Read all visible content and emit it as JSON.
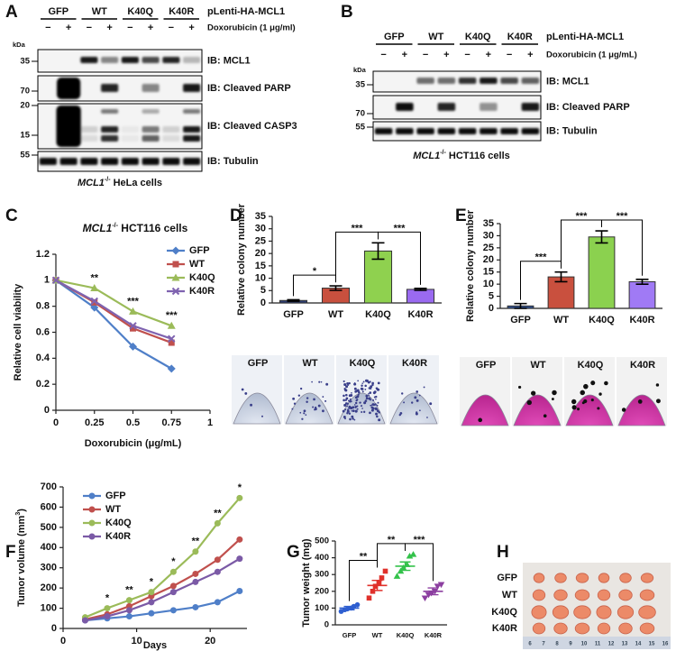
{
  "panel_labels": [
    "A",
    "B",
    "C",
    "D",
    "E",
    "F",
    "G",
    "H"
  ],
  "blot_a": {
    "groups": [
      "GFP",
      "WT",
      "K40Q",
      "K40R"
    ],
    "construct": "pLenti-HA-MCL1",
    "treatment": [
      "−",
      "+",
      "−",
      "+",
      "−",
      "+",
      "−",
      "+"
    ],
    "treatment_label": "Doxorubicin (1 μg/ml)",
    "kda": "kDa",
    "markers": [
      35,
      70,
      20,
      15,
      55
    ],
    "blots": [
      "IB: MCL1",
      "IB: Cleaved PARP",
      "IB: Cleaved CASP3",
      "IB: Tubulin"
    ],
    "caption": [
      "MCL1",
      "-/-",
      " HeLa cells"
    ]
  },
  "blot_b": {
    "groups": [
      "GFP",
      "WT",
      "K40Q",
      "K40R"
    ],
    "construct": "pLenti-HA-MCL1",
    "treatment": [
      "−",
      "+",
      "−",
      "+",
      "−",
      "+",
      "−",
      "+"
    ],
    "treatment_label": "Doxorubicin (1 μg/mL)",
    "kda": "kDa",
    "markers": [
      35,
      70,
      55
    ],
    "blots": [
      "IB: MCL1",
      "IB: Cleaved PARP",
      "IB: Tubulin"
    ],
    "caption": [
      "MCL1",
      "-/-",
      " HCT116 cells"
    ]
  },
  "chart_data": [
    {
      "type": "line",
      "title": [
        "MCL1",
        "-/-",
        " HCT116 cells"
      ],
      "ylabel": [
        "Relative cell viability"
      ],
      "xlabel": "Doxorubicin (μg/mL)",
      "x": [
        0,
        0.25,
        0.5,
        0.75
      ],
      "xlim": [
        0,
        1
      ],
      "xticks": [
        0,
        0.25,
        0.5,
        0.75,
        1
      ],
      "ylim": [
        0,
        1.2
      ],
      "yticks": [
        0,
        0.2,
        0.4,
        0.6,
        0.8,
        1,
        1.2
      ],
      "legend": "upper right",
      "series": [
        {
          "name": "GFP",
          "color": "#4f7fc8",
          "marker": "diamond",
          "values": [
            1,
            0.79,
            0.49,
            0.32
          ]
        },
        {
          "name": "WT",
          "color": "#c0504d",
          "marker": "square",
          "values": [
            1,
            0.83,
            0.63,
            0.52
          ]
        },
        {
          "name": "K40Q",
          "color": "#9bbb59",
          "marker": "triangle",
          "values": [
            1,
            0.94,
            0.76,
            0.65
          ]
        },
        {
          "name": "K40R",
          "color": "#7f63b0",
          "marker": "x",
          "values": [
            1,
            0.84,
            0.65,
            0.55
          ]
        }
      ],
      "annotations": [
        {
          "x": 0.25,
          "text": "**"
        },
        {
          "x": 0.5,
          "text": "***"
        },
        {
          "x": 0.75,
          "text": "***"
        }
      ]
    },
    {
      "type": "bar",
      "ylabel": [
        "Relative colony number"
      ],
      "categories": [
        "GFP",
        "WT",
        "K40Q",
        "K40R"
      ],
      "values": [
        1,
        6,
        21,
        5.5
      ],
      "errors": [
        0.3,
        0.9,
        3.3,
        0.4
      ],
      "colors": [
        "#2f3f73",
        "#c8503e",
        "#8fd14f",
        "#9a6af0"
      ],
      "ylim": [
        0,
        35
      ],
      "yticks": [
        0,
        5,
        10,
        15,
        20,
        25,
        30,
        35
      ],
      "annotations": [
        {
          "between": [
            "GFP",
            "WT"
          ],
          "text": "*"
        },
        {
          "between": [
            "WT",
            "K40Q"
          ],
          "text": "***"
        },
        {
          "between": [
            "K40Q",
            "K40R"
          ],
          "text": "***"
        }
      ],
      "plates": [
        "GFP",
        "WT",
        "K40Q",
        "K40R"
      ]
    },
    {
      "type": "bar",
      "ylabel": [
        "Relative colony number"
      ],
      "categories": [
        "GFP",
        "WT",
        "K40Q",
        "K40R"
      ],
      "values": [
        1,
        13,
        29.5,
        11
      ],
      "errors": [
        1,
        2,
        2.5,
        1
      ],
      "colors": [
        "#2f4f8f",
        "#c9503e",
        "#8bd14f",
        "#a07af5"
      ],
      "ylim": [
        0,
        35
      ],
      "yticks": [
        0,
        5,
        10,
        15,
        20,
        25,
        30,
        35
      ],
      "annotations": [
        {
          "between": [
            "GFP",
            "WT"
          ],
          "text": "***"
        },
        {
          "between": [
            "WT",
            "K40Q"
          ],
          "text": "***"
        },
        {
          "between": [
            "K40Q",
            "K40R"
          ],
          "text": "***"
        }
      ],
      "plates": [
        "GFP",
        "WT",
        "K40Q",
        "K40R"
      ]
    },
    {
      "type": "line",
      "ylabel": [
        "Tumor volume (mm",
        "3",
        ")"
      ],
      "xlabel": "Days",
      "x": [
        3,
        6,
        9,
        12,
        15,
        18,
        21,
        24
      ],
      "xlim": [
        0,
        25
      ],
      "xticks": [
        0,
        10,
        20
      ],
      "ylim": [
        0,
        700
      ],
      "yticks": [
        0,
        100,
        200,
        300,
        400,
        500,
        600,
        700
      ],
      "legend": "upper left",
      "series": [
        {
          "name": "GFP",
          "color": "#4f7fc8",
          "marker": "circle",
          "values": [
            40,
            50,
            60,
            75,
            90,
            105,
            130,
            185
          ]
        },
        {
          "name": "WT",
          "color": "#c0504d",
          "marker": "circle",
          "values": [
            45,
            70,
            110,
            160,
            210,
            270,
            340,
            440
          ]
        },
        {
          "name": "K40Q",
          "color": "#9bbb59",
          "marker": "circle",
          "values": [
            55,
            100,
            140,
            180,
            280,
            380,
            520,
            645
          ]
        },
        {
          "name": "K40R",
          "color": "#7b5aa6",
          "marker": "circle",
          "values": [
            40,
            60,
            90,
            130,
            180,
            230,
            280,
            345
          ]
        }
      ],
      "annotations": [
        {
          "x": 6,
          "text": "*"
        },
        {
          "x": 9,
          "text": "**"
        },
        {
          "x": 12,
          "text": "*"
        },
        {
          "x": 15,
          "text": "*"
        },
        {
          "x": 18,
          "text": "**"
        },
        {
          "x": 21,
          "text": "**"
        },
        {
          "x": 24,
          "text": "*"
        }
      ]
    },
    {
      "type": "strip",
      "ylabel": [
        "Tumor weight (mg)"
      ],
      "categories": [
        "GFP",
        "WT",
        "K40Q",
        "K40R"
      ],
      "points": [
        [
          80,
          90,
          95,
          100,
          110,
          120
        ],
        [
          160,
          200,
          230,
          250,
          280,
          320
        ],
        [
          290,
          320,
          340,
          360,
          410,
          420
        ],
        [
          160,
          180,
          190,
          200,
          230,
          240
        ]
      ],
      "means": [
        100,
        235,
        350,
        200
      ],
      "sems": [
        10,
        30,
        25,
        20
      ],
      "colors": [
        "#2e5fd0",
        "#e0312b",
        "#33c24a",
        "#8c3fa0"
      ],
      "markers": [
        "circle",
        "square",
        "triangle",
        "triangle-down"
      ],
      "ylim": [
        0,
        500
      ],
      "yticks": [
        0,
        100,
        200,
        300,
        400,
        500
      ],
      "annotations": [
        {
          "between": [
            "GFP",
            "WT"
          ],
          "text": "**"
        },
        {
          "between": [
            "WT",
            "K40Q"
          ],
          "text": "**"
        },
        {
          "between": [
            "K40Q",
            "K40R"
          ],
          "text": "***"
        }
      ]
    }
  ],
  "tumor_photo": {
    "rows": [
      "GFP",
      "WT",
      "K40Q",
      "K40R"
    ],
    "ruler": [
      6,
      7,
      8,
      9,
      10,
      11,
      12,
      13,
      14,
      15,
      16
    ]
  }
}
